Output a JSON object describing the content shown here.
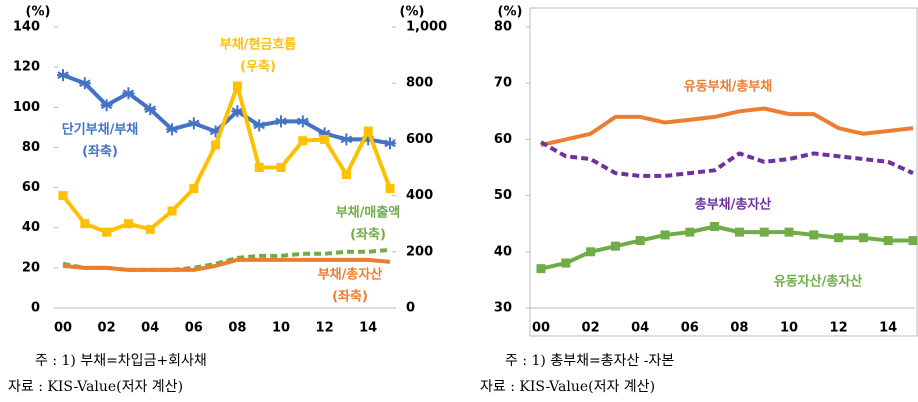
{
  "chart_data": [
    {
      "type": "line",
      "y_unit": "(%)",
      "y2_unit": "(%)",
      "categories": [
        "00",
        null,
        "02",
        null,
        "04",
        null,
        "06",
        null,
        "08",
        null,
        "10",
        null,
        "12",
        null,
        "14",
        null
      ],
      "ylim": [
        0,
        140
      ],
      "yticks": [
        0,
        20,
        40,
        60,
        80,
        100,
        120,
        140
      ],
      "y2lim": [
        0,
        1000
      ],
      "y2ticks": [
        0,
        200,
        400,
        600,
        800,
        {
          "value": 1000,
          "label": "1,000"
        }
      ],
      "series": [
        {
          "name": "단기부채/부채",
          "note": "(좌축)",
          "color": "#4472c4",
          "marker": "star",
          "values": [
            116,
            112,
            101,
            107,
            99,
            89,
            92,
            88,
            98,
            91,
            93,
            93,
            87,
            84,
            84,
            82
          ]
        },
        {
          "name": "부채/현금흐름",
          "note": "(우축)",
          "color": "#ffc000",
          "marker": "square",
          "axis": "y2",
          "values": [
            400,
            300,
            270,
            300,
            280,
            345,
            425,
            580,
            790,
            500,
            500,
            595,
            600,
            475,
            630,
            425
          ]
        },
        {
          "name": "부채/매출액",
          "note": "(좌축)",
          "color": "#70ad47",
          "dashed": true,
          "values": [
            22,
            20,
            20,
            19,
            19,
            19,
            20,
            22,
            25,
            26,
            26,
            27,
            27,
            28,
            28,
            29
          ]
        },
        {
          "name": "부채/총자산",
          "note": "(좌축)",
          "color": "#ed7d31",
          "values": [
            21,
            20,
            20,
            19,
            19,
            19,
            19,
            21,
            24,
            24,
            24,
            24,
            24,
            24,
            24,
            23
          ]
        }
      ],
      "note": "주 : 1) 부채=차입금+회사채",
      "source": "자료 : KIS-Value(저자 계산)"
    },
    {
      "type": "line",
      "y_unit": "(%)",
      "categories": [
        "00",
        null,
        "02",
        null,
        "04",
        null,
        "06",
        null,
        "08",
        null,
        "10",
        null,
        "12",
        null,
        "14",
        null
      ],
      "ylim": [
        30,
        80
      ],
      "yticks": [
        30,
        40,
        50,
        60,
        70,
        80
      ],
      "series": [
        {
          "name": "유동부채/총부채",
          "color": "#ed7d31",
          "values": [
            59,
            60,
            61,
            64,
            64,
            63,
            63.5,
            64,
            65,
            65.5,
            64.5,
            64.5,
            62,
            61,
            61.5,
            62
          ]
        },
        {
          "name": "총부채/총자산",
          "color": "#7030a0",
          "dashed": true,
          "values": [
            59.5,
            57,
            56.5,
            54,
            53.5,
            53.5,
            54,
            54.5,
            57.5,
            56,
            56.5,
            57.5,
            57,
            56.5,
            56,
            54
          ]
        },
        {
          "name": "유동자산/총자산",
          "color": "#70ad47",
          "marker": "square",
          "values": [
            37,
            38,
            40,
            41,
            42,
            43,
            43.5,
            44.5,
            43.5,
            43.5,
            43.5,
            43,
            42.5,
            42.5,
            42,
            42
          ]
        }
      ],
      "note": "주 : 1) 총부채=총자산 -자본",
      "source": "자료 : KIS-Value(저자 계산)"
    }
  ]
}
